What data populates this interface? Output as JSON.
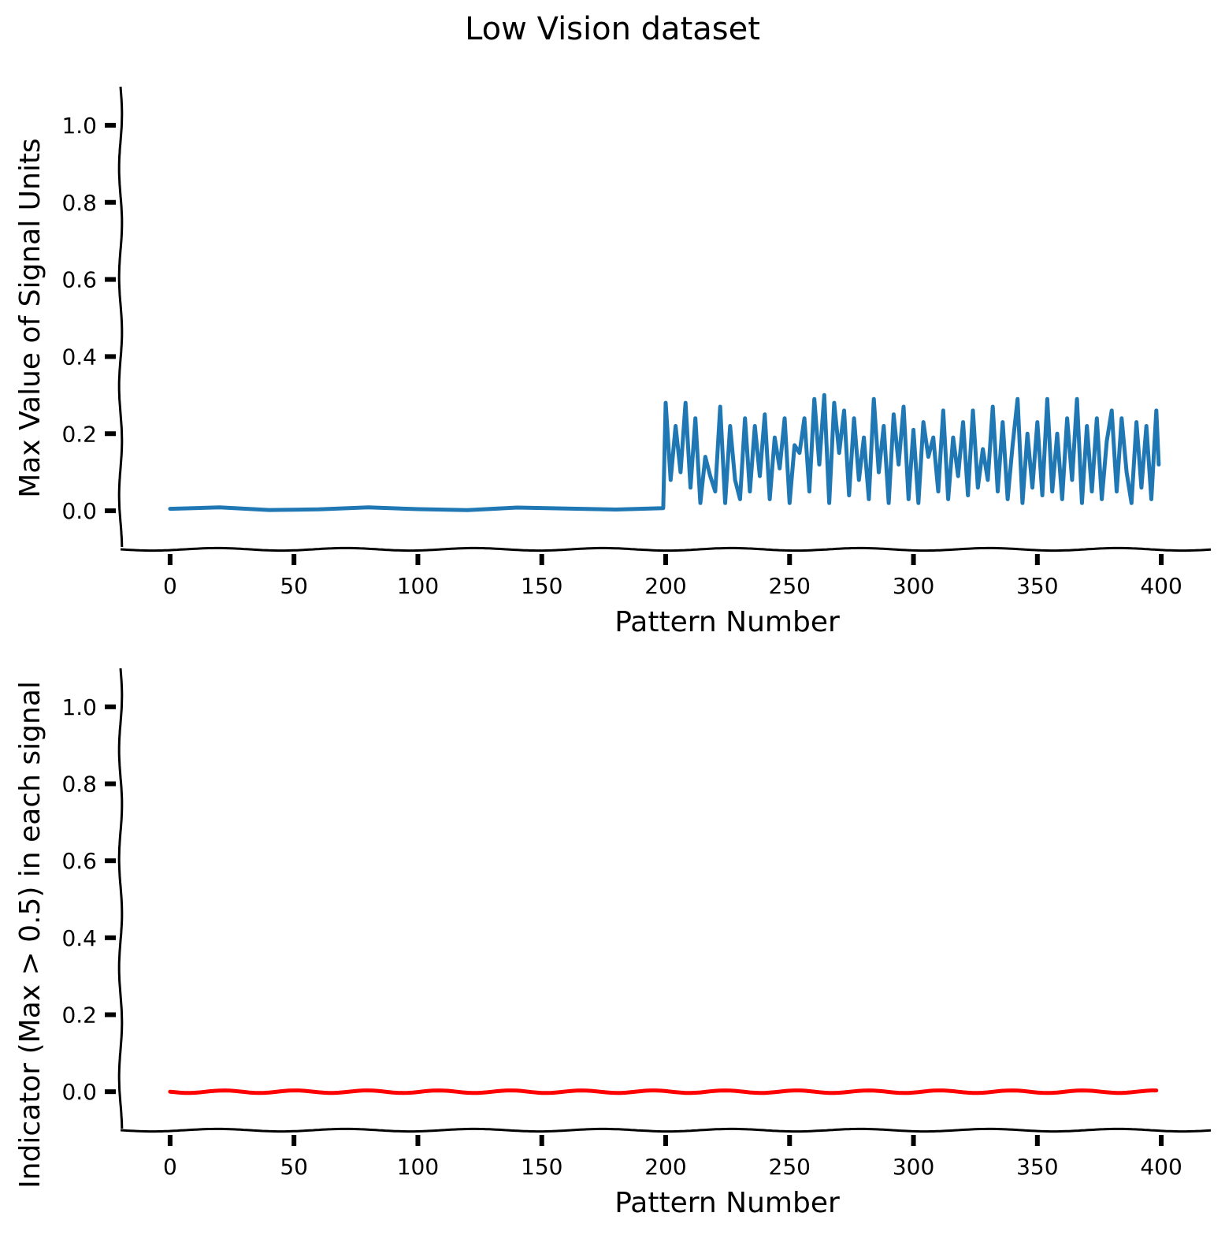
{
  "figure": {
    "title": "Low Vision dataset"
  },
  "chart_data": [
    {
      "type": "line",
      "xlabel": "Pattern Number",
      "ylabel": "Max Value of Signal Units",
      "xlim": [
        -20,
        420
      ],
      "ylim": [
        -0.1,
        1.1
      ],
      "xticks": [
        0,
        50,
        100,
        150,
        200,
        250,
        300,
        350,
        400
      ],
      "yticks": [
        0.0,
        0.2,
        0.4,
        0.6,
        0.8,
        1.0
      ],
      "grid": false,
      "series": [
        {
          "color": "#1f77b4",
          "segments": [
            {
              "x_range": [
                0,
                199
              ],
              "value": 0.005,
              "description_of_values": "near-constant low values around 0.0"
            },
            {
              "x_range": [
                200,
                399
              ],
              "min": 0.02,
              "max": 0.3,
              "description_of_values": "rapidly fluctuating values between about 0.02 and 0.30"
            }
          ],
          "x": [
            0,
            20,
            40,
            60,
            80,
            100,
            120,
            140,
            160,
            180,
            199,
            200,
            202,
            204,
            206,
            208,
            210,
            212,
            214,
            216,
            218,
            220,
            222,
            224,
            226,
            228,
            230,
            232,
            234,
            236,
            238,
            240,
            242,
            244,
            246,
            248,
            250,
            252,
            254,
            256,
            258,
            260,
            262,
            264,
            266,
            268,
            270,
            272,
            274,
            276,
            278,
            280,
            282,
            284,
            286,
            288,
            290,
            292,
            294,
            296,
            298,
            300,
            302,
            304,
            306,
            308,
            310,
            312,
            314,
            316,
            318,
            320,
            322,
            324,
            326,
            328,
            330,
            332,
            334,
            336,
            338,
            340,
            342,
            344,
            346,
            348,
            350,
            352,
            354,
            356,
            358,
            360,
            362,
            364,
            366,
            368,
            370,
            372,
            374,
            376,
            378,
            380,
            382,
            384,
            386,
            388,
            390,
            392,
            394,
            396,
            398,
            399
          ],
          "y": [
            0.005,
            0.006,
            0.004,
            0.005,
            0.006,
            0.005,
            0.004,
            0.006,
            0.005,
            0.006,
            0.005,
            0.28,
            0.08,
            0.22,
            0.1,
            0.28,
            0.06,
            0.24,
            0.02,
            0.14,
            0.09,
            0.05,
            0.27,
            0.02,
            0.22,
            0.08,
            0.03,
            0.24,
            0.05,
            0.22,
            0.09,
            0.25,
            0.03,
            0.19,
            0.11,
            0.24,
            0.02,
            0.17,
            0.15,
            0.24,
            0.05,
            0.29,
            0.12,
            0.3,
            0.02,
            0.28,
            0.15,
            0.26,
            0.04,
            0.24,
            0.08,
            0.19,
            0.03,
            0.29,
            0.1,
            0.22,
            0.02,
            0.25,
            0.12,
            0.27,
            0.03,
            0.21,
            0.02,
            0.23,
            0.14,
            0.19,
            0.05,
            0.26,
            0.03,
            0.19,
            0.09,
            0.23,
            0.04,
            0.26,
            0.06,
            0.16,
            0.08,
            0.27,
            0.05,
            0.23,
            0.03,
            0.17,
            0.29,
            0.02,
            0.2,
            0.06,
            0.23,
            0.04,
            0.29,
            0.05,
            0.2,
            0.03,
            0.24,
            0.08,
            0.29,
            0.02,
            0.22,
            0.05,
            0.24,
            0.03,
            0.18,
            0.26,
            0.05,
            0.24,
            0.1,
            0.02,
            0.23,
            0.06,
            0.22,
            0.03,
            0.26,
            0.12
          ]
        }
      ]
    },
    {
      "type": "line",
      "xlabel": "Pattern Number",
      "ylabel": "Indicator (Max > 0.5) in each signal",
      "xlim": [
        -20,
        420
      ],
      "ylim": [
        -0.1,
        1.1
      ],
      "xticks": [
        0,
        50,
        100,
        150,
        200,
        250,
        300,
        350,
        400
      ],
      "yticks": [
        0.0,
        0.2,
        0.4,
        0.6,
        0.8,
        1.0
      ],
      "grid": false,
      "series": [
        {
          "color": "#ff0000",
          "x": [
            0,
            399
          ],
          "y": [
            0,
            0
          ]
        }
      ]
    }
  ]
}
